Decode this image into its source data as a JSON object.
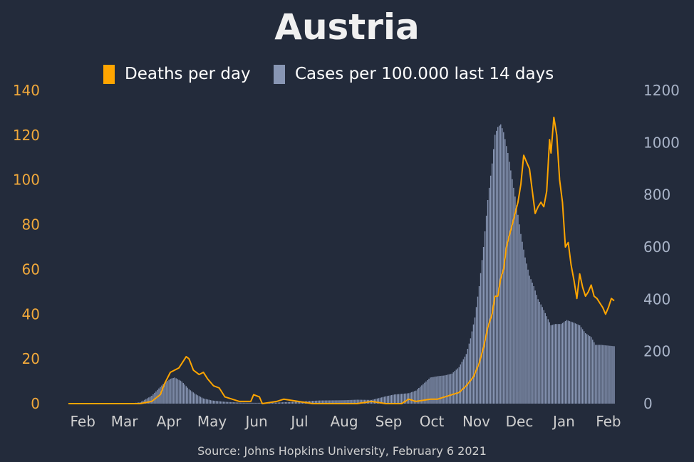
{
  "colors": {
    "background": "#232b3b",
    "deaths": "#ffa500",
    "cases": "#8896b4",
    "title": "#f0f0f0",
    "text": "#cfcfcf",
    "legend_text": "#ffffff",
    "left_axis": "#f2a93b",
    "right_axis": "#a9b4c8"
  },
  "chart_data": {
    "type": "bar+line",
    "title": "Austria",
    "source": "Source: Johns Hopkins University, February 6 2021",
    "legend": {
      "placement": "top-center",
      "items": [
        {
          "label": "Deaths per day",
          "color": "#ffa500"
        },
        {
          "label": "Cases per 100.000 last 14 days",
          "color": "#8896b4"
        }
      ]
    },
    "x": {
      "start": "2020-01-22",
      "end": "2021-02-05",
      "tick_labels": [
        "Feb",
        "Mar",
        "Apr",
        "May",
        "Jun",
        "Jul",
        "Aug",
        "Sep",
        "Oct",
        "Nov",
        "Dec",
        "Jan",
        "Feb"
      ],
      "tick_dates": [
        "2020-02-01",
        "2020-03-01",
        "2020-04-01",
        "2020-05-01",
        "2020-06-01",
        "2020-07-01",
        "2020-08-01",
        "2020-09-01",
        "2020-10-01",
        "2020-11-01",
        "2020-12-01",
        "2021-01-01",
        "2021-02-01"
      ]
    },
    "y_left": {
      "ylim": [
        0,
        140
      ],
      "ticks": [
        0,
        20,
        40,
        60,
        80,
        100,
        120,
        140
      ]
    },
    "y_right": {
      "ylim": [
        0,
        1200
      ],
      "ticks": [
        0,
        200,
        400,
        600,
        800,
        1000,
        1200
      ]
    },
    "grid": false,
    "series": [
      {
        "name": "Deaths per day",
        "axis": "left",
        "kind": "line",
        "points": [
          [
            "2020-01-22",
            0
          ],
          [
            "2020-03-12",
            0
          ],
          [
            "2020-03-20",
            1
          ],
          [
            "2020-03-26",
            4
          ],
          [
            "2020-03-29",
            9
          ],
          [
            "2020-04-02",
            14
          ],
          [
            "2020-04-05",
            15
          ],
          [
            "2020-04-08",
            16
          ],
          [
            "2020-04-11",
            19
          ],
          [
            "2020-04-13",
            21
          ],
          [
            "2020-04-15",
            20
          ],
          [
            "2020-04-18",
            15
          ],
          [
            "2020-04-22",
            13
          ],
          [
            "2020-04-25",
            14
          ],
          [
            "2020-04-28",
            11
          ],
          [
            "2020-05-02",
            8
          ],
          [
            "2020-05-06",
            7
          ],
          [
            "2020-05-10",
            3
          ],
          [
            "2020-05-15",
            2
          ],
          [
            "2020-05-20",
            1
          ],
          [
            "2020-05-25",
            1
          ],
          [
            "2020-05-28",
            1
          ],
          [
            "2020-05-30",
            4
          ],
          [
            "2020-06-03",
            3
          ],
          [
            "2020-06-05",
            0
          ],
          [
            "2020-06-15",
            1
          ],
          [
            "2020-06-20",
            2
          ],
          [
            "2020-06-30",
            1
          ],
          [
            "2020-07-10",
            0
          ],
          [
            "2020-08-10",
            0
          ],
          [
            "2020-08-20",
            1
          ],
          [
            "2020-08-30",
            0
          ],
          [
            "2020-09-10",
            0
          ],
          [
            "2020-09-15",
            2
          ],
          [
            "2020-09-20",
            1
          ],
          [
            "2020-09-30",
            2
          ],
          [
            "2020-10-05",
            2
          ],
          [
            "2020-10-10",
            3
          ],
          [
            "2020-10-15",
            4
          ],
          [
            "2020-10-20",
            5
          ],
          [
            "2020-10-25",
            8
          ],
          [
            "2020-10-30",
            12
          ],
          [
            "2020-11-03",
            18
          ],
          [
            "2020-11-06",
            25
          ],
          [
            "2020-11-09",
            34
          ],
          [
            "2020-11-12",
            40
          ],
          [
            "2020-11-14",
            48
          ],
          [
            "2020-11-16",
            48
          ],
          [
            "2020-11-18",
            56
          ],
          [
            "2020-11-20",
            60
          ],
          [
            "2020-11-22",
            70
          ],
          [
            "2020-11-24",
            75
          ],
          [
            "2020-11-26",
            80
          ],
          [
            "2020-11-28",
            85
          ],
          [
            "2020-11-30",
            90
          ],
          [
            "2020-12-02",
            98
          ],
          [
            "2020-12-04",
            111
          ],
          [
            "2020-12-06",
            108
          ],
          [
            "2020-12-08",
            105
          ],
          [
            "2020-12-10",
            95
          ],
          [
            "2020-12-12",
            85
          ],
          [
            "2020-12-14",
            88
          ],
          [
            "2020-12-16",
            90
          ],
          [
            "2020-12-18",
            88
          ],
          [
            "2020-12-20",
            95
          ],
          [
            "2020-12-22",
            118
          ],
          [
            "2020-12-23",
            112
          ],
          [
            "2020-12-25",
            128
          ],
          [
            "2020-12-27",
            120
          ],
          [
            "2020-12-29",
            100
          ],
          [
            "2020-12-31",
            90
          ],
          [
            "2021-01-02",
            70
          ],
          [
            "2021-01-04",
            72
          ],
          [
            "2021-01-06",
            62
          ],
          [
            "2021-01-08",
            55
          ],
          [
            "2021-01-10",
            47
          ],
          [
            "2021-01-12",
            58
          ],
          [
            "2021-01-14",
            52
          ],
          [
            "2021-01-16",
            48
          ],
          [
            "2021-01-18",
            50
          ],
          [
            "2021-01-20",
            53
          ],
          [
            "2021-01-22",
            48
          ],
          [
            "2021-01-24",
            47
          ],
          [
            "2021-01-26",
            45
          ],
          [
            "2021-01-28",
            43
          ],
          [
            "2021-01-30",
            40
          ],
          [
            "2021-02-01",
            43
          ],
          [
            "2021-02-03",
            47
          ],
          [
            "2021-02-05",
            46
          ]
        ]
      },
      {
        "name": "Cases per 100.000 last 14 days",
        "axis": "right",
        "kind": "bar",
        "points": [
          [
            "2020-01-22",
            0
          ],
          [
            "2020-03-05",
            1
          ],
          [
            "2020-03-12",
            5
          ],
          [
            "2020-03-20",
            30
          ],
          [
            "2020-03-28",
            75
          ],
          [
            "2020-04-02",
            95
          ],
          [
            "2020-04-05",
            100
          ],
          [
            "2020-04-10",
            85
          ],
          [
            "2020-04-15",
            55
          ],
          [
            "2020-04-20",
            35
          ],
          [
            "2020-04-25",
            20
          ],
          [
            "2020-05-01",
            12
          ],
          [
            "2020-05-10",
            7
          ],
          [
            "2020-05-20",
            4
          ],
          [
            "2020-06-01",
            3
          ],
          [
            "2020-06-15",
            4
          ],
          [
            "2020-07-01",
            8
          ],
          [
            "2020-07-15",
            12
          ],
          [
            "2020-08-01",
            13
          ],
          [
            "2020-08-10",
            15
          ],
          [
            "2020-08-20",
            14
          ],
          [
            "2020-08-30",
            28
          ],
          [
            "2020-09-05",
            35
          ],
          [
            "2020-09-15",
            40
          ],
          [
            "2020-09-20",
            50
          ],
          [
            "2020-09-25",
            75
          ],
          [
            "2020-09-30",
            100
          ],
          [
            "2020-10-05",
            105
          ],
          [
            "2020-10-10",
            108
          ],
          [
            "2020-10-15",
            115
          ],
          [
            "2020-10-20",
            140
          ],
          [
            "2020-10-25",
            190
          ],
          [
            "2020-10-28",
            250
          ],
          [
            "2020-10-31",
            330
          ],
          [
            "2020-11-03",
            450
          ],
          [
            "2020-11-06",
            600
          ],
          [
            "2020-11-09",
            780
          ],
          [
            "2020-11-12",
            920
          ],
          [
            "2020-11-14",
            1030
          ],
          [
            "2020-11-16",
            1060
          ],
          [
            "2020-11-18",
            1070
          ],
          [
            "2020-11-20",
            1040
          ],
          [
            "2020-11-23",
            960
          ],
          [
            "2020-11-26",
            860
          ],
          [
            "2020-11-29",
            760
          ],
          [
            "2020-12-02",
            650
          ],
          [
            "2020-12-05",
            560
          ],
          [
            "2020-12-08",
            490
          ],
          [
            "2020-12-11",
            450
          ],
          [
            "2020-12-14",
            400
          ],
          [
            "2020-12-17",
            370
          ],
          [
            "2020-12-20",
            335
          ],
          [
            "2020-12-23",
            300
          ],
          [
            "2020-12-26",
            305
          ],
          [
            "2020-12-30",
            305
          ],
          [
            "2021-01-03",
            320
          ],
          [
            "2021-01-08",
            310
          ],
          [
            "2021-01-12",
            300
          ],
          [
            "2021-01-16",
            270
          ],
          [
            "2021-01-20",
            255
          ],
          [
            "2021-01-23",
            225
          ],
          [
            "2021-01-27",
            225
          ],
          [
            "2021-02-05",
            220
          ]
        ]
      }
    ]
  }
}
